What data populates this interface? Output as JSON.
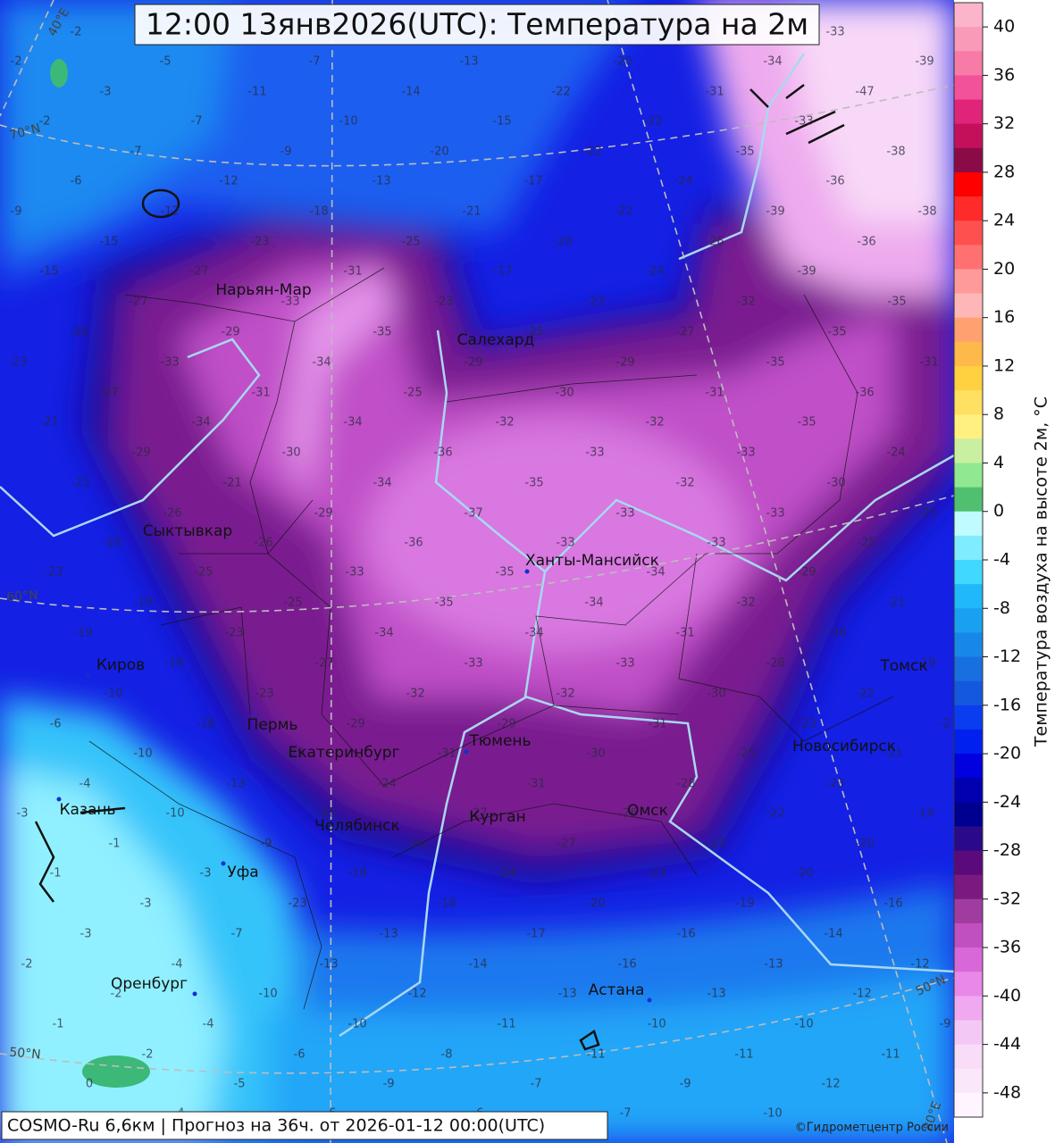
{
  "title": "12:00 13янв2026(UTC): Температура на 2м",
  "cities": [
    "Нарьян-Мар",
    "Салехард",
    "Сыктывкар",
    "Ханты-Мансийск",
    "Киров",
    "Пермь",
    "Екатеринбург",
    "Тюмень",
    "Томск",
    "Новосибирск",
    "Омск",
    "Курган",
    "Челябинск",
    "Казань",
    "Уфа",
    "Оренбург",
    "Астана"
  ],
  "graticule_labels": [
    "40°E",
    "70°N",
    "60°N",
    "50°N",
    "50°N",
    "80°E"
  ],
  "temperature_labels": [
    -2,
    -33,
    -2,
    -5,
    -7,
    -13,
    -20,
    -34,
    -39,
    -3,
    -11,
    -14,
    -22,
    -31,
    -47,
    -2,
    -7,
    -10,
    -15,
    -22,
    -33,
    -7,
    -9,
    -20,
    -22,
    -35,
    -38,
    -6,
    -12,
    -13,
    -17,
    -24,
    -36,
    -9,
    -12,
    -18,
    -21,
    -22,
    -39,
    -38,
    -15,
    -23,
    -25,
    -20,
    -26,
    -36,
    -15,
    -27,
    -31,
    -17,
    -24,
    -39,
    -27,
    -33,
    -23,
    -23,
    -32,
    -35,
    -26,
    -29,
    -35,
    -25,
    -27,
    -35,
    -23,
    -33,
    -34,
    -29,
    -29,
    -35,
    -31,
    -27,
    -31,
    -25,
    -30,
    -31,
    -36,
    -21,
    -34,
    -34,
    -32,
    -32,
    -35,
    -29,
    -30,
    -36,
    -33,
    -33,
    -24,
    -21,
    -21,
    -34,
    -35,
    -32,
    -30,
    -26,
    -29,
    -37,
    -33,
    -33,
    -25,
    -20,
    -26,
    -36,
    -33,
    -33,
    -25,
    -23,
    -25,
    -33,
    -35,
    -34,
    -29,
    -19,
    -25,
    -35,
    -34,
    -32,
    -21,
    -19,
    -23,
    -34,
    -34,
    -31,
    -26,
    -19,
    -27,
    -33,
    -33,
    -28,
    -19,
    -10,
    -23,
    -32,
    -32,
    -30,
    -22,
    -6,
    -18,
    -29,
    -29,
    -31,
    -23,
    -2,
    -10,
    -25,
    -31,
    -30,
    -25,
    -21,
    -4,
    -13,
    -24,
    -31,
    -28,
    -23,
    -3,
    -10,
    -22,
    -27,
    -26,
    -22,
    -19,
    -1,
    -9,
    -24,
    -27,
    -23,
    -20,
    -1,
    -3,
    -18,
    -24,
    -23,
    -20,
    -3,
    -23,
    -18,
    -20,
    -19,
    -16,
    -3,
    -7,
    -13,
    -17,
    -16,
    -14,
    -2,
    -4,
    -13,
    -14,
    -16,
    -13,
    -12,
    -2,
    -10,
    -12,
    -13,
    -13,
    -12,
    -1,
    -4,
    -10,
    -11,
    -10,
    -10,
    -9,
    -2,
    -6,
    -8,
    -11,
    -11,
    -11,
    0,
    -5,
    -9,
    -7,
    -9,
    -12,
    -4,
    -6,
    -6,
    -7,
    -10
  ],
  "colorbar": {
    "label": "Температура воздуха на высоте 2м, °C",
    "lim": [
      -50,
      42
    ],
    "ticks": [
      40,
      36,
      32,
      28,
      24,
      20,
      16,
      12,
      8,
      4,
      0,
      -4,
      -8,
      -12,
      -16,
      -20,
      -24,
      -28,
      -32,
      -36,
      -40,
      -44,
      -48
    ],
    "colors": [
      "#fbb4c9",
      "#f99ab8",
      "#f77ba6",
      "#f2529a",
      "#e0247a",
      "#c4105a",
      "#8a0b45",
      "#ff0000",
      "#ff2a2a",
      "#ff5050",
      "#ff7070",
      "#ff9a9a",
      "#ffb6b6",
      "#ffa070",
      "#ffb84a",
      "#ffd040",
      "#ffe060",
      "#fff080",
      "#c8f0a0",
      "#90e890",
      "#50c070",
      "#c0fbff",
      "#80ecff",
      "#40d8ff",
      "#20b8f8",
      "#1aa0f0",
      "#1888e8",
      "#1870e0",
      "#1458e0",
      "#0a3cf0",
      "#0020f0",
      "#0000e0",
      "#0000b0",
      "#000090",
      "#2a0a8a",
      "#5a0a7a",
      "#7a1a80",
      "#a03ca0",
      "#c050c0",
      "#d868d8",
      "#e888e8",
      "#f0a8f0",
      "#f4c8f4",
      "#f8dcf8",
      "#fae8fa",
      "#fff4ff"
    ]
  },
  "footer": "COSMO-Ru 6,6км | Прогноз на  36ч. от 2026-01-12 00:00(UTC)",
  "credit": "©Гидрометцентр России"
}
